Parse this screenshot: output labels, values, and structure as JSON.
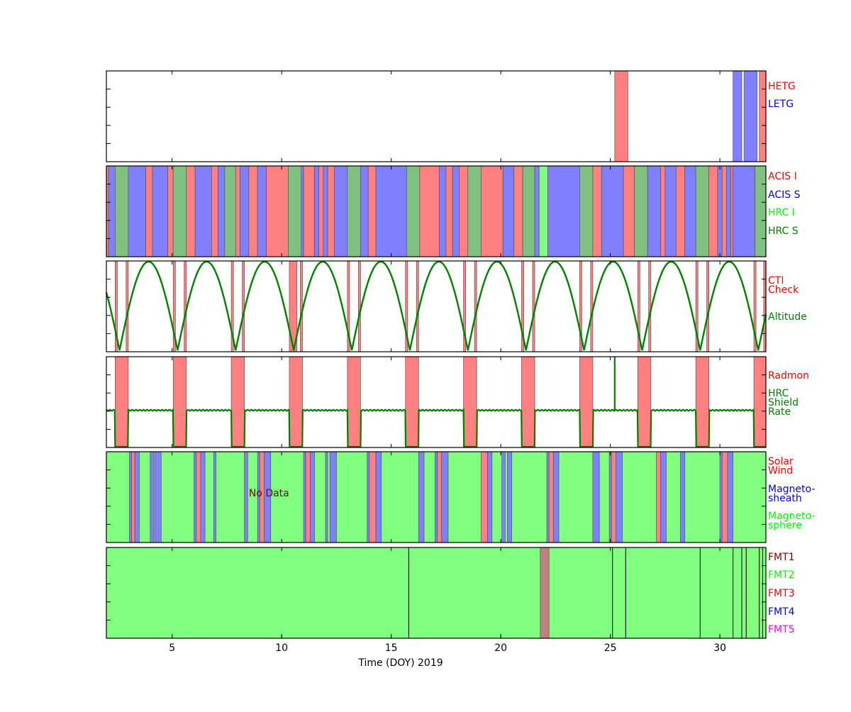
{
  "chart_data": {
    "type": "timeline",
    "xlabel": "Time (DOY) 2019",
    "xlim": [
      2,
      32.1
    ],
    "xticks": [
      "5",
      "10",
      "15",
      "20",
      "25",
      "30"
    ],
    "panels": [
      {
        "id": "gratings",
        "legend": [
          {
            "text": "HETG",
            "color": "#ff0000"
          },
          {
            "text": "LETG",
            "color": "#0000ff"
          }
        ],
        "intervals": [
          {
            "start": 25.2,
            "end": 25.8,
            "color": "#ff8080"
          },
          {
            "start": 30.6,
            "end": 31.0,
            "color": "#8080ff"
          },
          {
            "start": 31.1,
            "end": 31.7,
            "color": "#8080ff"
          },
          {
            "start": 31.8,
            "end": 32.1,
            "color": "#ff8080"
          }
        ]
      },
      {
        "id": "instruments",
        "legend": [
          {
            "text": "ACIS I",
            "color": "#ff0000"
          },
          {
            "text": "ACIS S",
            "color": "#0000ff"
          },
          {
            "text": "HRC I",
            "color": "#00ff00"
          },
          {
            "text": "HRC S",
            "color": "#008000"
          }
        ],
        "intervals": [
          {
            "start": 2.0,
            "end": 2.1,
            "color": "#ff8080"
          },
          {
            "start": 2.1,
            "end": 2.4,
            "color": "#8080ff"
          },
          {
            "start": 2.4,
            "end": 3.0,
            "color": "#80c080"
          },
          {
            "start": 3.0,
            "end": 3.8,
            "color": "#8080ff"
          },
          {
            "start": 3.8,
            "end": 4.1,
            "color": "#ff8080"
          },
          {
            "start": 4.1,
            "end": 4.8,
            "color": "#8080ff"
          },
          {
            "start": 4.8,
            "end": 5.05,
            "color": "#ff8080"
          },
          {
            "start": 5.05,
            "end": 5.65,
            "color": "#80c080"
          },
          {
            "start": 5.65,
            "end": 6.05,
            "color": "#ff8080"
          },
          {
            "start": 6.05,
            "end": 6.8,
            "color": "#8080ff"
          },
          {
            "start": 6.8,
            "end": 7.1,
            "color": "#ff8080"
          },
          {
            "start": 7.1,
            "end": 7.4,
            "color": "#8080ff"
          },
          {
            "start": 7.4,
            "end": 7.9,
            "color": "#80c080"
          },
          {
            "start": 7.9,
            "end": 8.1,
            "color": "#ff8080"
          },
          {
            "start": 8.1,
            "end": 8.5,
            "color": "#8080ff"
          },
          {
            "start": 8.5,
            "end": 8.9,
            "color": "#ff8080"
          },
          {
            "start": 8.9,
            "end": 9.3,
            "color": "#8080ff"
          },
          {
            "start": 9.3,
            "end": 10.3,
            "color": "#ff8080"
          },
          {
            "start": 10.3,
            "end": 10.9,
            "color": "#80c080"
          },
          {
            "start": 10.9,
            "end": 11.0,
            "color": "#8080ff"
          },
          {
            "start": 11.0,
            "end": 11.5,
            "color": "#ff8080"
          },
          {
            "start": 11.5,
            "end": 11.7,
            "color": "#8080ff"
          },
          {
            "start": 11.7,
            "end": 11.9,
            "color": "#ff8080"
          },
          {
            "start": 11.9,
            "end": 12.1,
            "color": "#8080ff"
          },
          {
            "start": 12.1,
            "end": 12.4,
            "color": "#ff8080"
          },
          {
            "start": 12.4,
            "end": 13.0,
            "color": "#8080ff"
          },
          {
            "start": 13.0,
            "end": 13.6,
            "color": "#80c080"
          },
          {
            "start": 13.6,
            "end": 13.95,
            "color": "#8080ff"
          },
          {
            "start": 13.95,
            "end": 14.3,
            "color": "#ff8080"
          },
          {
            "start": 14.3,
            "end": 15.7,
            "color": "#8080ff"
          },
          {
            "start": 15.7,
            "end": 16.3,
            "color": "#80c080"
          },
          {
            "start": 16.3,
            "end": 17.2,
            "color": "#ff8080"
          },
          {
            "start": 17.2,
            "end": 17.5,
            "color": "#8080ff"
          },
          {
            "start": 17.5,
            "end": 17.8,
            "color": "#ff8080"
          },
          {
            "start": 17.8,
            "end": 18.1,
            "color": "#8080ff"
          },
          {
            "start": 18.1,
            "end": 18.5,
            "color": "#ff8080"
          },
          {
            "start": 18.5,
            "end": 19.1,
            "color": "#80c080"
          },
          {
            "start": 19.1,
            "end": 20.1,
            "color": "#ff8080"
          },
          {
            "start": 20.1,
            "end": 20.6,
            "color": "#8080ff"
          },
          {
            "start": 20.6,
            "end": 21.0,
            "color": "#ff8080"
          },
          {
            "start": 21.0,
            "end": 21.55,
            "color": "#80c080"
          },
          {
            "start": 21.55,
            "end": 21.75,
            "color": "#8080ff"
          },
          {
            "start": 21.75,
            "end": 22.15,
            "color": "#80ff80"
          },
          {
            "start": 22.15,
            "end": 23.6,
            "color": "#8080ff"
          },
          {
            "start": 23.6,
            "end": 24.2,
            "color": "#80c080"
          },
          {
            "start": 24.2,
            "end": 24.6,
            "color": "#ff8080"
          },
          {
            "start": 24.6,
            "end": 25.6,
            "color": "#8080ff"
          },
          {
            "start": 25.6,
            "end": 26.1,
            "color": "#ff8080"
          },
          {
            "start": 26.1,
            "end": 26.7,
            "color": "#80c080"
          },
          {
            "start": 26.7,
            "end": 27.3,
            "color": "#8080ff"
          },
          {
            "start": 27.3,
            "end": 27.5,
            "color": "#ff8080"
          },
          {
            "start": 27.5,
            "end": 28.0,
            "color": "#8080ff"
          },
          {
            "start": 28.0,
            "end": 28.4,
            "color": "#ff8080"
          },
          {
            "start": 28.4,
            "end": 28.9,
            "color": "#8080ff"
          },
          {
            "start": 28.9,
            "end": 29.5,
            "color": "#80c080"
          },
          {
            "start": 29.5,
            "end": 29.9,
            "color": "#ff8080"
          },
          {
            "start": 29.9,
            "end": 30.1,
            "color": "#8080ff"
          },
          {
            "start": 30.1,
            "end": 30.3,
            "color": "#ff8080"
          },
          {
            "start": 30.3,
            "end": 30.5,
            "color": "#8080ff"
          },
          {
            "start": 30.5,
            "end": 30.6,
            "color": "#ff8080"
          },
          {
            "start": 30.6,
            "end": 31.6,
            "color": "#8080ff"
          },
          {
            "start": 31.6,
            "end": 32.1,
            "color": "#80c080"
          }
        ]
      },
      {
        "id": "altitude",
        "legend": [
          {
            "text": "CTI",
            "color": "#ff0000"
          },
          {
            "text": "Check",
            "color": "#ff0000"
          },
          {
            "text": "Altitude",
            "color": "#008000"
          }
        ],
        "altitude_period_days": 2.65,
        "altitude_minima_doy": [
          2.6,
          5.25,
          7.9,
          10.55,
          13.2,
          15.85,
          18.5,
          21.15,
          23.8,
          26.45,
          29.1,
          31.75
        ],
        "intervals": [
          {
            "start": 2.4,
            "end": 2.5,
            "color": "#ff8080"
          },
          {
            "start": 2.9,
            "end": 3.0,
            "color": "#ff8080"
          },
          {
            "start": 5.05,
            "end": 5.15,
            "color": "#ff8080"
          },
          {
            "start": 5.55,
            "end": 5.65,
            "color": "#ff8080"
          },
          {
            "start": 7.7,
            "end": 7.8,
            "color": "#ff8080"
          },
          {
            "start": 8.2,
            "end": 8.3,
            "color": "#ff8080"
          },
          {
            "start": 10.35,
            "end": 10.7,
            "color": "#ff8080"
          },
          {
            "start": 10.85,
            "end": 10.95,
            "color": "#ff8080"
          },
          {
            "start": 13.0,
            "end": 13.1,
            "color": "#ff8080"
          },
          {
            "start": 13.5,
            "end": 13.6,
            "color": "#ff8080"
          },
          {
            "start": 15.65,
            "end": 15.75,
            "color": "#ff8080"
          },
          {
            "start": 16.15,
            "end": 16.25,
            "color": "#ff8080"
          },
          {
            "start": 18.3,
            "end": 18.4,
            "color": "#ff8080"
          },
          {
            "start": 18.8,
            "end": 18.9,
            "color": "#ff8080"
          },
          {
            "start": 20.95,
            "end": 21.05,
            "color": "#ff8080"
          },
          {
            "start": 21.45,
            "end": 21.55,
            "color": "#ff8080"
          },
          {
            "start": 23.6,
            "end": 23.7,
            "color": "#ff8080"
          },
          {
            "start": 24.1,
            "end": 24.2,
            "color": "#ff8080"
          },
          {
            "start": 26.25,
            "end": 26.35,
            "color": "#ff8080"
          },
          {
            "start": 26.75,
            "end": 26.85,
            "color": "#ff8080"
          },
          {
            "start": 28.9,
            "end": 29.0,
            "color": "#ff8080"
          },
          {
            "start": 29.4,
            "end": 29.5,
            "color": "#ff8080"
          },
          {
            "start": 31.55,
            "end": 31.65,
            "color": "#ff8080"
          },
          {
            "start": 32.0,
            "end": 32.1,
            "color": "#ff8080"
          }
        ]
      },
      {
        "id": "radmon",
        "legend": [
          {
            "text": "Radmon",
            "color": "#ff0000"
          },
          {
            "text": "HRC",
            "color": "#008000"
          },
          {
            "text": "Shield",
            "color": "#008000"
          },
          {
            "text": "Rate",
            "color": "#008000"
          }
        ],
        "radmon_off": [
          {
            "start": 2.4,
            "end": 3.0
          },
          {
            "start": 5.05,
            "end": 5.65
          },
          {
            "start": 7.7,
            "end": 8.3
          },
          {
            "start": 10.35,
            "end": 10.95
          },
          {
            "start": 13.0,
            "end": 13.6
          },
          {
            "start": 15.65,
            "end": 16.25
          },
          {
            "start": 18.3,
            "end": 18.9
          },
          {
            "start": 20.95,
            "end": 21.55
          },
          {
            "start": 23.6,
            "end": 24.2
          },
          {
            "start": 26.25,
            "end": 26.85
          },
          {
            "start": 28.9,
            "end": 29.5
          },
          {
            "start": 31.55,
            "end": 32.1
          }
        ],
        "shield_rate_level": 0.41,
        "shield_rate_spike_doy": 25.2
      },
      {
        "id": "environment",
        "legend": [
          {
            "text": "Solar",
            "color": "#ff0000"
          },
          {
            "text": "Wind",
            "color": "#ff0000"
          },
          {
            "text": "Magneto-",
            "color": "#0000ff"
          },
          {
            "text": "sheath",
            "color": "#0000ff"
          },
          {
            "text": "Magneto-",
            "color": "#00ff00"
          },
          {
            "text": "sphere",
            "color": "#00ff00"
          }
        ],
        "annotation": "No Data",
        "annotation_color": "#800000",
        "background_color": "#80ff80",
        "intervals": [
          {
            "start": 3.05,
            "end": 3.15,
            "color": "#8080ff"
          },
          {
            "start": 3.15,
            "end": 3.3,
            "color": "#ff8080"
          },
          {
            "start": 3.3,
            "end": 3.5,
            "color": "#8080ff"
          },
          {
            "start": 4.0,
            "end": 4.15,
            "color": "#8080ff"
          },
          {
            "start": 4.2,
            "end": 4.5,
            "color": "#8080ff"
          },
          {
            "start": 6.0,
            "end": 6.1,
            "color": "#8080ff"
          },
          {
            "start": 6.1,
            "end": 6.3,
            "color": "#ff8080"
          },
          {
            "start": 6.3,
            "end": 6.5,
            "color": "#8080ff"
          },
          {
            "start": 6.9,
            "end": 7.0,
            "color": "#8080ff"
          },
          {
            "start": 8.3,
            "end": 8.45,
            "color": "#8080ff"
          },
          {
            "start": 8.9,
            "end": 9.0,
            "color": "#8080ff"
          },
          {
            "start": 9.0,
            "end": 9.2,
            "color": "#ff8080"
          },
          {
            "start": 9.2,
            "end": 9.5,
            "color": "#8080ff"
          },
          {
            "start": 11.0,
            "end": 11.1,
            "color": "#8080ff"
          },
          {
            "start": 11.1,
            "end": 11.3,
            "color": "#ff8080"
          },
          {
            "start": 11.3,
            "end": 11.5,
            "color": "#8080ff"
          },
          {
            "start": 12.0,
            "end": 12.1,
            "color": "#8080ff"
          },
          {
            "start": 12.2,
            "end": 12.5,
            "color": "#8080ff"
          },
          {
            "start": 13.9,
            "end": 14.0,
            "color": "#8080ff"
          },
          {
            "start": 14.0,
            "end": 14.3,
            "color": "#ff8080"
          },
          {
            "start": 14.3,
            "end": 14.55,
            "color": "#8080ff"
          },
          {
            "start": 16.25,
            "end": 16.5,
            "color": "#8080ff"
          },
          {
            "start": 17.0,
            "end": 17.1,
            "color": "#8080ff"
          },
          {
            "start": 17.1,
            "end": 17.3,
            "color": "#ff8080"
          },
          {
            "start": 17.3,
            "end": 17.6,
            "color": "#8080ff"
          },
          {
            "start": 19.1,
            "end": 19.4,
            "color": "#ff8080"
          },
          {
            "start": 19.4,
            "end": 19.6,
            "color": "#8080ff"
          },
          {
            "start": 20.05,
            "end": 20.2,
            "color": "#8080ff"
          },
          {
            "start": 20.3,
            "end": 20.5,
            "color": "#8080ff"
          },
          {
            "start": 22.1,
            "end": 22.2,
            "color": "#8080ff"
          },
          {
            "start": 22.2,
            "end": 22.4,
            "color": "#ff8080"
          },
          {
            "start": 22.4,
            "end": 22.65,
            "color": "#8080ff"
          },
          {
            "start": 24.2,
            "end": 24.5,
            "color": "#8080ff"
          },
          {
            "start": 24.95,
            "end": 25.05,
            "color": "#8080ff"
          },
          {
            "start": 25.05,
            "end": 25.25,
            "color": "#ff8080"
          },
          {
            "start": 25.25,
            "end": 25.55,
            "color": "#8080ff"
          },
          {
            "start": 27.1,
            "end": 27.3,
            "color": "#ff8080"
          },
          {
            "start": 27.3,
            "end": 27.55,
            "color": "#8080ff"
          },
          {
            "start": 28.2,
            "end": 28.4,
            "color": "#8080ff"
          },
          {
            "start": 30.0,
            "end": 30.1,
            "color": "#8080ff"
          },
          {
            "start": 30.1,
            "end": 30.35,
            "color": "#ff8080"
          },
          {
            "start": 30.35,
            "end": 30.6,
            "color": "#8080ff"
          }
        ]
      },
      {
        "id": "formats",
        "legend": [
          {
            "text": "FMT1",
            "color": "#800000"
          },
          {
            "text": "FMT2",
            "color": "#00ff00"
          },
          {
            "text": "FMT3",
            "color": "#ff0000"
          },
          {
            "text": "FMT4",
            "color": "#0000ff"
          },
          {
            "text": "FMT5",
            "color": "#ff00ff"
          }
        ],
        "background_color": "#80ff80",
        "intervals": [
          {
            "start": 21.8,
            "end": 22.2,
            "color": "#c08080"
          }
        ],
        "boundaries": [
          15.8,
          25.1,
          25.7,
          29.1,
          30.6,
          31.0,
          31.2,
          31.8,
          31.95
        ]
      }
    ]
  }
}
